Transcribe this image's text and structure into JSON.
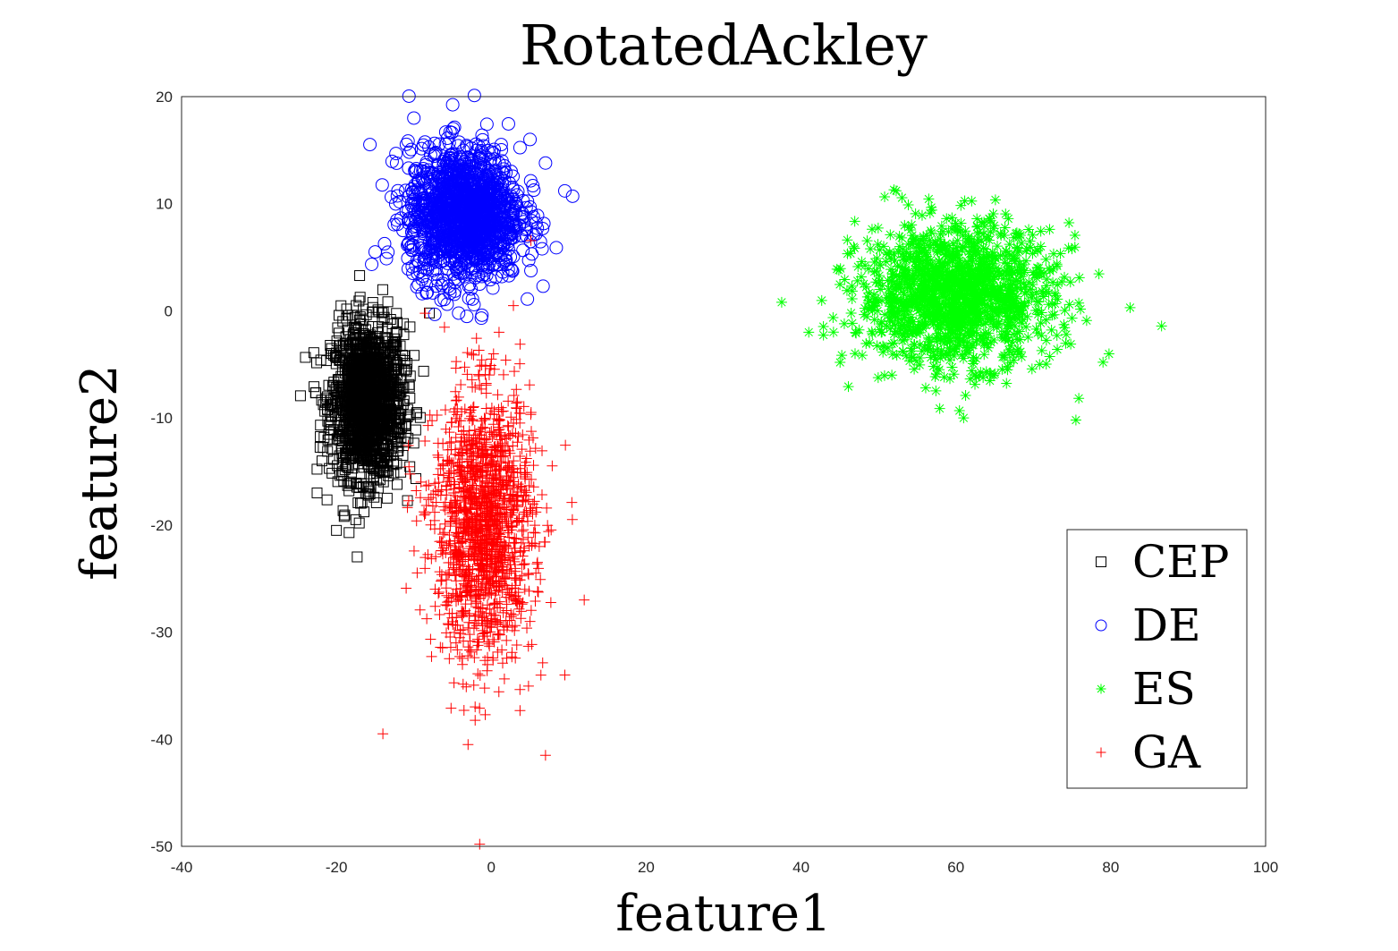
{
  "chart_data": {
    "type": "scatter",
    "title": "RotatedAckley",
    "xlabel": "feature1",
    "ylabel": "feature2",
    "xlim": [
      -40,
      100
    ],
    "ylim": [
      -50,
      20
    ],
    "xticks": [
      "-40",
      "-20",
      "0",
      "20",
      "40",
      "60",
      "80",
      "100"
    ],
    "yticks": [
      "-50",
      "-40",
      "-30",
      "-20",
      "-10",
      "0",
      "10",
      "20"
    ],
    "grid": false,
    "legend_position": "lower-right",
    "series": [
      {
        "name": "CEP",
        "marker": "square",
        "color": "#000000",
        "center": [
          -16,
          -8.5
        ],
        "spread": [
          2.3,
          3.6
        ],
        "extremes": [
          [
            -22.5,
            -17
          ],
          [
            -20,
            -20.5
          ],
          [
            -17.5,
            -19.5
          ],
          [
            -19,
            -19.2
          ],
          [
            -10.5,
            -1.5
          ],
          [
            -13,
            -0.8
          ],
          [
            -8,
            -0.2
          ]
        ]
      },
      {
        "name": "DE",
        "marker": "circle",
        "color": "#0000ff",
        "center": [
          -3.5,
          9
        ],
        "spread": [
          3.6,
          3.1
        ],
        "extremes": [
          [
            10.5,
            10.7
          ],
          [
            7,
            13.8
          ],
          [
            -10,
            18
          ],
          [
            -6.5,
            1
          ],
          [
            9.5,
            11.2
          ],
          [
            5,
            16
          ],
          [
            -15,
            5.5
          ]
        ]
      },
      {
        "name": "ES",
        "marker": "asterisk",
        "color": "#00ff00",
        "center": [
          60,
          1.5
        ],
        "spread": [
          6.2,
          3.2
        ],
        "extremes": [
          [
            37.5,
            0.8
          ],
          [
            41,
            -2
          ],
          [
            82.5,
            0.3
          ],
          [
            75.5,
            -10.2
          ],
          [
            52,
            11.3
          ],
          [
            61,
            -10
          ],
          [
            79,
            -4.8
          ]
        ]
      },
      {
        "name": "GA",
        "marker": "plus",
        "color": "#ff0000",
        "center": [
          -1,
          -20
        ],
        "spread": [
          3.2,
          6.2
        ],
        "extremes": [
          [
            -1.5,
            -49.8
          ],
          [
            -14,
            -39.5
          ],
          [
            7,
            -41.5
          ],
          [
            12,
            -27
          ],
          [
            1,
            -2
          ],
          [
            -3,
            -40.5
          ],
          [
            9.5,
            -34
          ]
        ]
      }
    ]
  }
}
